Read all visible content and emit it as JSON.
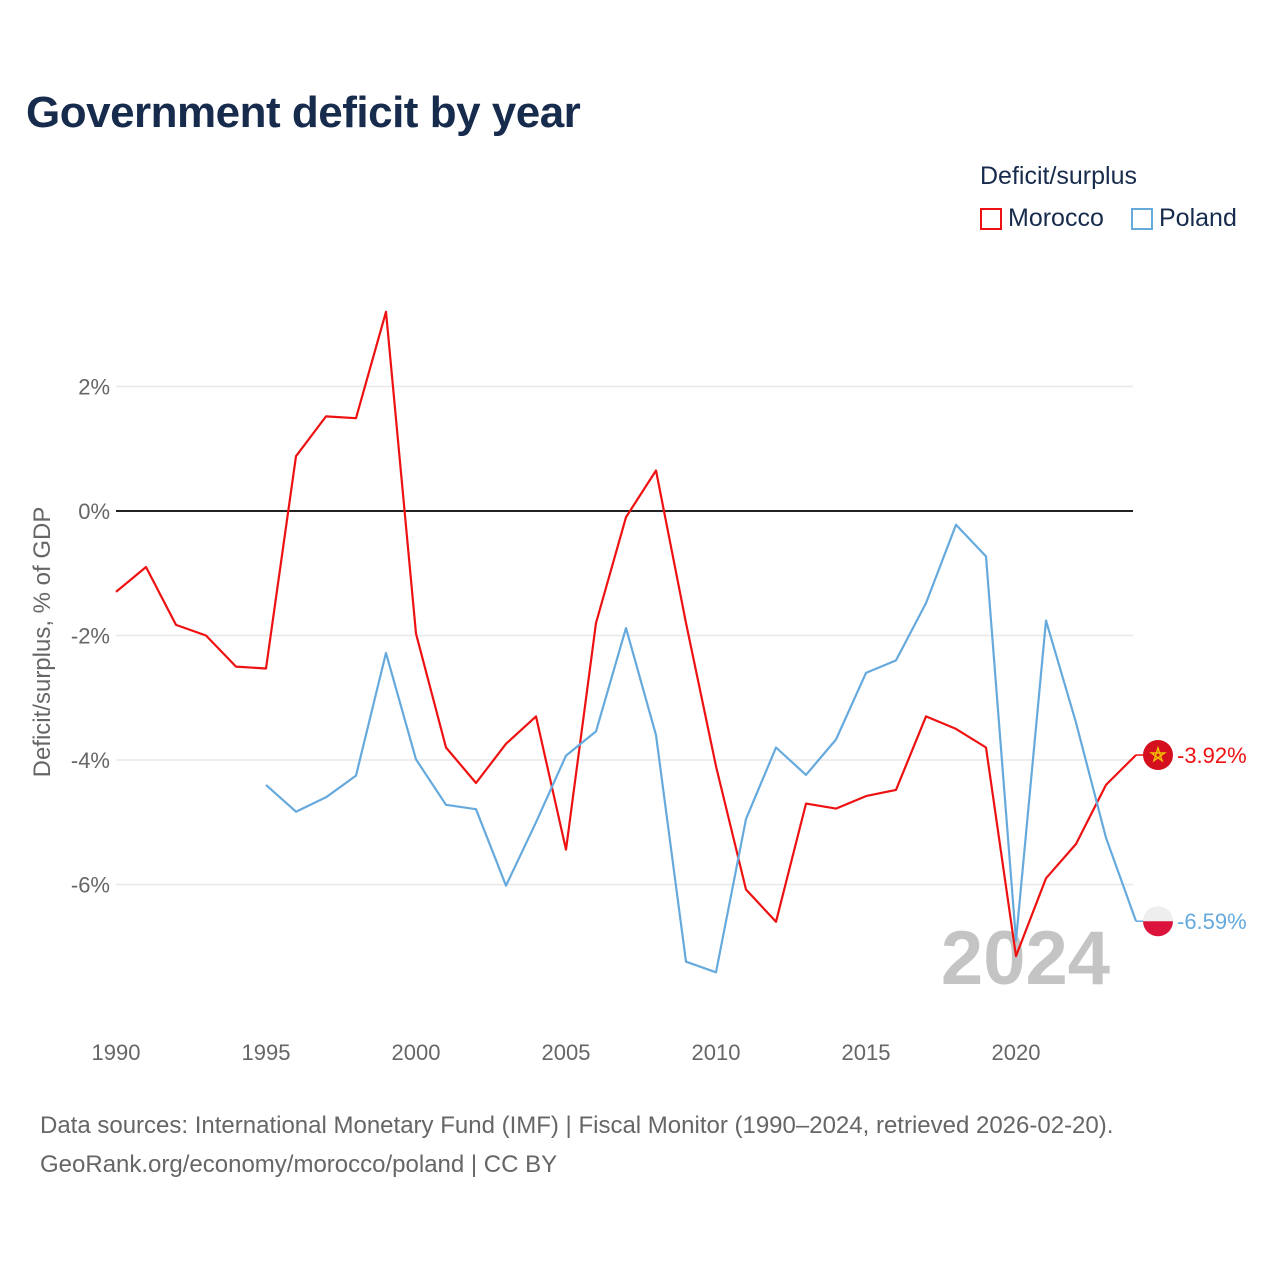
{
  "header": {
    "title": "Government deficit by year"
  },
  "legend": {
    "title": "Deficit/surplus",
    "items": [
      {
        "label": "Morocco",
        "color": "#ee1111"
      },
      {
        "label": "Poland",
        "color": "#66aadd"
      }
    ]
  },
  "chart_data": {
    "type": "line",
    "title": "Government deficit by year",
    "xlabel": "",
    "ylabel": "Deficit/surplus, % of GDP",
    "xlim": [
      1990,
      2024
    ],
    "ylim": [
      -8,
      3.5
    ],
    "x_ticks": [
      1990,
      1995,
      2000,
      2005,
      2010,
      2015,
      2020
    ],
    "y_ticks": [
      {
        "value": 2,
        "label": "2%"
      },
      {
        "value": 0,
        "label": "0%"
      },
      {
        "value": -2,
        "label": "-2%"
      },
      {
        "value": -4,
        "label": "-4%"
      },
      {
        "value": -6,
        "label": "-6%"
      }
    ],
    "year_watermark": "2024",
    "series": [
      {
        "name": "Morocco",
        "color": "#ee1111",
        "end_label": "-3.92%",
        "flag_icon": "morocco-flag-icon",
        "points": [
          [
            1990,
            -1.3
          ],
          [
            1991,
            -0.9
          ],
          [
            1992,
            -1.83
          ],
          [
            1993,
            -2.0
          ],
          [
            1994,
            -2.5
          ],
          [
            1995,
            -2.53
          ],
          [
            1996,
            0.88
          ],
          [
            1997,
            1.52
          ],
          [
            1998,
            1.49
          ],
          [
            1999,
            3.2
          ],
          [
            2000,
            -1.97
          ],
          [
            2001,
            -3.8
          ],
          [
            2002,
            -4.37
          ],
          [
            2003,
            -3.74
          ],
          [
            2004,
            -3.3
          ],
          [
            2005,
            -5.44
          ],
          [
            2006,
            -1.8
          ],
          [
            2007,
            -0.1
          ],
          [
            2008,
            0.65
          ],
          [
            2009,
            -1.8
          ],
          [
            2010,
            -4.1
          ],
          [
            2011,
            -6.08
          ],
          [
            2012,
            -6.6
          ],
          [
            2013,
            -4.7
          ],
          [
            2014,
            -4.78
          ],
          [
            2015,
            -4.58
          ],
          [
            2016,
            -4.48
          ],
          [
            2017,
            -3.3
          ],
          [
            2018,
            -3.5
          ],
          [
            2019,
            -3.8
          ],
          [
            2020,
            -7.15
          ],
          [
            2021,
            -5.9
          ],
          [
            2022,
            -5.35
          ],
          [
            2023,
            -4.4
          ],
          [
            2024,
            -3.92
          ]
        ]
      },
      {
        "name": "Poland",
        "color": "#66aadd",
        "end_label": "-6.59%",
        "flag_icon": "poland-flag-icon",
        "points": [
          [
            1995,
            -4.4
          ],
          [
            1996,
            -4.83
          ],
          [
            1997,
            -4.6
          ],
          [
            1998,
            -4.25
          ],
          [
            1999,
            -2.28
          ],
          [
            2000,
            -3.99
          ],
          [
            2001,
            -4.72
          ],
          [
            2002,
            -4.79
          ],
          [
            2003,
            -6.02
          ],
          [
            2004,
            -5.0
          ],
          [
            2005,
            -3.93
          ],
          [
            2006,
            -3.54
          ],
          [
            2007,
            -1.88
          ],
          [
            2008,
            -3.6
          ],
          [
            2009,
            -7.24
          ],
          [
            2010,
            -7.41
          ],
          [
            2011,
            -4.95
          ],
          [
            2012,
            -3.8
          ],
          [
            2013,
            -4.24
          ],
          [
            2014,
            -3.67
          ],
          [
            2015,
            -2.6
          ],
          [
            2016,
            -2.4
          ],
          [
            2017,
            -1.48
          ],
          [
            2018,
            -0.22
          ],
          [
            2019,
            -0.73
          ],
          [
            2020,
            -6.9
          ],
          [
            2021,
            -1.76
          ],
          [
            2022,
            -3.4
          ],
          [
            2023,
            -5.25
          ],
          [
            2024,
            -6.59
          ]
        ]
      }
    ]
  },
  "footer": {
    "source": "Data sources: International Monetary Fund (IMF) | Fiscal Monitor (1990–2024, retrieved 2026-02-20).",
    "credit": "GeoRank.org/economy/morocco/poland | CC BY"
  }
}
